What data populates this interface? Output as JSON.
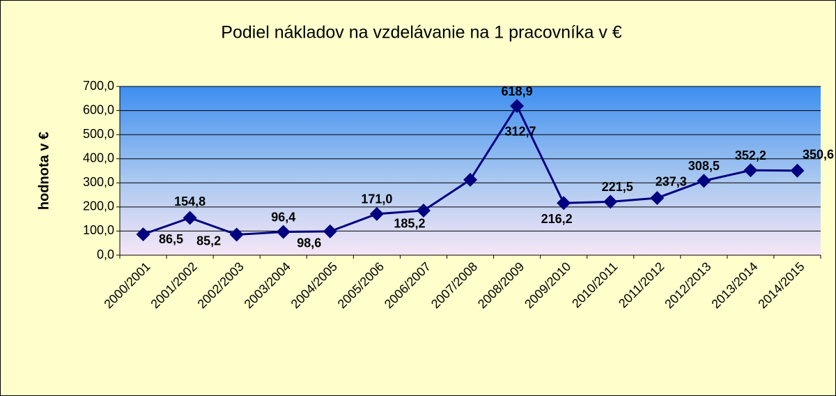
{
  "chart_data": {
    "type": "line",
    "title": "Podiel nákladov na vzdelávanie na 1 pracovníka v €",
    "ylabel": "hodnota v €",
    "categories": [
      "2000/2001",
      "2001/2002",
      "2002/2003",
      "2003/2004",
      "2004/2005",
      "2005/2006",
      "2006/2007",
      "2007/2008",
      "2008/2009",
      "2009/2010",
      "2010/2011",
      "2011/2012",
      "2012/2013",
      "2013/2014",
      "2014/2015"
    ],
    "series": [
      {
        "name": "hodnota v €",
        "color": "#000080",
        "values": [
          86.5,
          154.8,
          85.2,
          96.4,
          98.6,
          171.0,
          185.2,
          312.7,
          618.9,
          216.2,
          221.5,
          237.3,
          308.5,
          352.2,
          350.6
        ],
        "value_labels": [
          "86,5",
          "154,8",
          "85,2",
          "96,4",
          "98,6",
          "171,0",
          "185,2",
          "312,7",
          "618,9",
          "216,2",
          "221,5",
          "237,3",
          "308,5",
          "352,2",
          "350,6"
        ]
      }
    ],
    "ylim": [
      0,
      700
    ],
    "yticks": [
      {
        "value": 0,
        "label": "0,0"
      },
      {
        "value": 100,
        "label": "100,0"
      },
      {
        "value": 200,
        "label": "200,0"
      },
      {
        "value": 300,
        "label": "300,0"
      },
      {
        "value": 400,
        "label": "400,0"
      },
      {
        "value": 500,
        "label": "500,0"
      },
      {
        "value": 600,
        "label": "600,0"
      },
      {
        "value": 700,
        "label": "700,0"
      }
    ],
    "grid": true
  }
}
